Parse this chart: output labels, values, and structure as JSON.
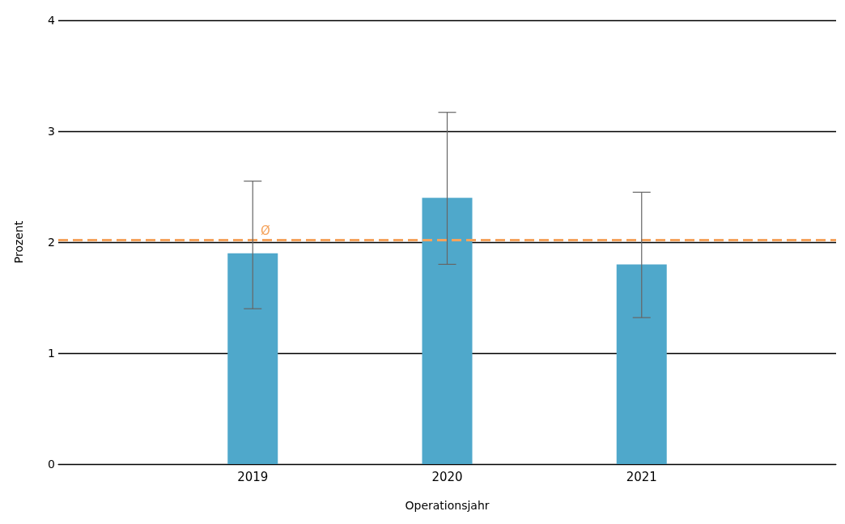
{
  "chart_data": {
    "type": "bar",
    "xlabel": "Operationsjahr",
    "ylabel": "Prozent",
    "categories": [
      "2019",
      "2020",
      "2021"
    ],
    "values": [
      1.9,
      2.4,
      1.8
    ],
    "errors": [
      [
        1.4,
        2.55
      ],
      [
        1.8,
        3.17
      ],
      [
        1.32,
        2.45
      ]
    ],
    "color": "#4fa8cb",
    "ylim": [
      0,
      4
    ],
    "yticks": [
      0,
      1,
      2,
      3,
      4
    ],
    "grid": "y",
    "ref_lines": [
      {
        "axis": "y",
        "value": 2.02,
        "label": "Ø",
        "color": "#f5a35c",
        "line_style": "dashed"
      }
    ]
  }
}
